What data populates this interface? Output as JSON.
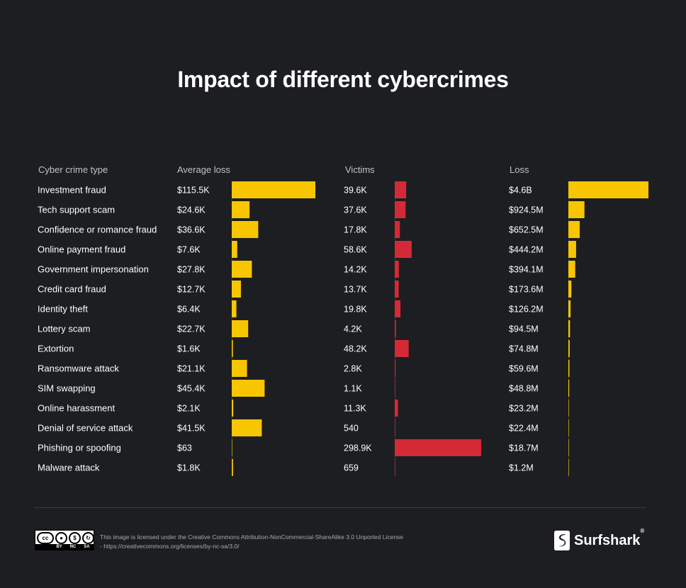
{
  "title": "Impact of different cybercrimes",
  "headers": {
    "type": "Cyber crime type",
    "avg_loss": "Average loss",
    "victims": "Victims",
    "loss": "Loss"
  },
  "colors": {
    "background": "#1d1e21",
    "avg_loss_bar": "#f7c600",
    "victims_bar": "#d42a37",
    "loss_bar": "#f7c600"
  },
  "chart_data": {
    "type": "bar",
    "orientation": "horizontal",
    "title": "Impact of different cybercrimes",
    "categories": [
      "Investment fraud",
      "Tech support scam",
      "Confidence or romance fraud",
      "Online payment fraud",
      "Government impersonation",
      "Credit card fraud",
      "Identity theft",
      "Lottery scam",
      "Extortion",
      "Ransomware attack",
      "SIM swapping",
      "Online harassment",
      "Denial of service attack",
      "Phishing or spoofing",
      "Malware attack"
    ],
    "series": [
      {
        "name": "Average loss",
        "values": [
          115500,
          24600,
          36600,
          7600,
          27800,
          12700,
          6400,
          22700,
          1600,
          21100,
          45400,
          2100,
          41500,
          63,
          1800
        ],
        "labels": [
          "$115.5K",
          "$24.6K",
          "$36.6K",
          "$7.6K",
          "$27.8K",
          "$12.7K",
          "$6.4K",
          "$22.7K",
          "$1.6K",
          "$21.1K",
          "$45.4K",
          "$2.1K",
          "$41.5K",
          "$63",
          "$1.8K"
        ]
      },
      {
        "name": "Victims",
        "values": [
          39600,
          37600,
          17800,
          58600,
          14200,
          13700,
          19800,
          4200,
          48200,
          2800,
          1100,
          11300,
          540,
          298900,
          659
        ],
        "labels": [
          "39.6K",
          "37.6K",
          "17.8K",
          "58.6K",
          "14.2K",
          "13.7K",
          "19.8K",
          "4.2K",
          "48.2K",
          "2.8K",
          "1.1K",
          "11.3K",
          "540",
          "298.9K",
          "659"
        ]
      },
      {
        "name": "Loss",
        "values": [
          4600000000,
          924500000,
          652500000,
          444200000,
          394100000,
          173600000,
          126200000,
          94500000,
          74800000,
          59600000,
          48800000,
          23200000,
          22400000,
          18700000,
          1200000
        ],
        "labels": [
          "$4.6B",
          "$924.5M",
          "$652.5M",
          "$444.2M",
          "$394.1M",
          "$173.6M",
          "$126.2M",
          "$94.5M",
          "$74.8M",
          "$59.6M",
          "$48.8M",
          "$23.2M",
          "$22.4M",
          "$18.7M",
          "$1.2M"
        ]
      }
    ]
  },
  "footer": {
    "license_text": "This image is licensed under the Creative Commons Attribution-NonCommercial-ShareAlike 3.0 Unported License - https://creativecommons.org/licenses/by-nc-sa/3.0/",
    "cc_badge": {
      "top": "cc",
      "bottom": [
        "BY",
        "NC",
        "SA"
      ]
    },
    "brand": "Surfshark",
    "brand_mark": "®"
  }
}
